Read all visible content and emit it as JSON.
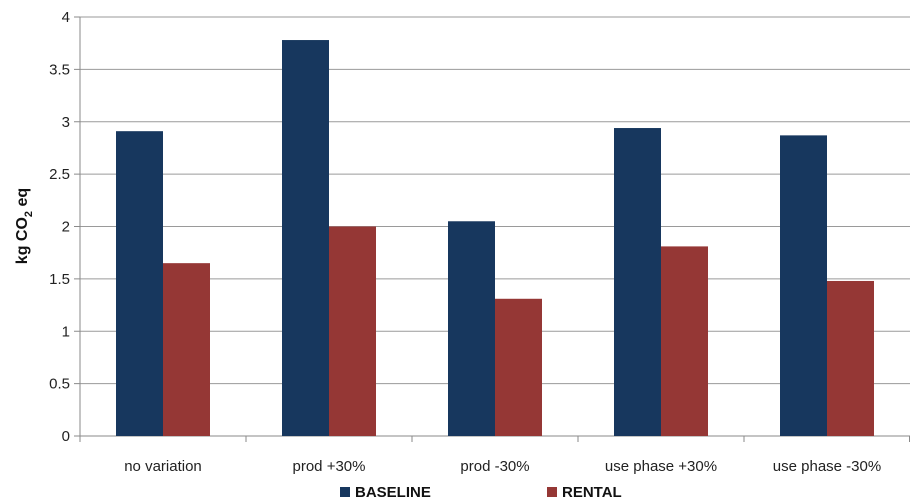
{
  "chart_data": {
    "type": "bar",
    "categories": [
      "no variation",
      "prod +30%",
      "prod -30%",
      "use phase +30%",
      "use phase -30%"
    ],
    "series": [
      {
        "name": "BASELINE",
        "values": [
          2.91,
          3.78,
          2.05,
          2.94,
          2.87
        ],
        "color": "#17375e"
      },
      {
        "name": "RENTAL",
        "values": [
          1.65,
          2.0,
          1.31,
          1.81,
          1.48
        ],
        "color": "#953735"
      }
    ],
    "ylabel": {
      "prefix": "kg CO",
      "subscript": "2",
      "suffix": " eq"
    },
    "ylim": [
      0,
      4
    ],
    "yticks": [
      0,
      0.5,
      1,
      1.5,
      2,
      2.5,
      3,
      3.5,
      4
    ],
    "ytick_labels": [
      "0",
      "0.5",
      "1",
      "1.5",
      "2",
      "2.5",
      "3",
      "3.5",
      "4"
    ],
    "grid": true,
    "legend": "bottom-center"
  }
}
